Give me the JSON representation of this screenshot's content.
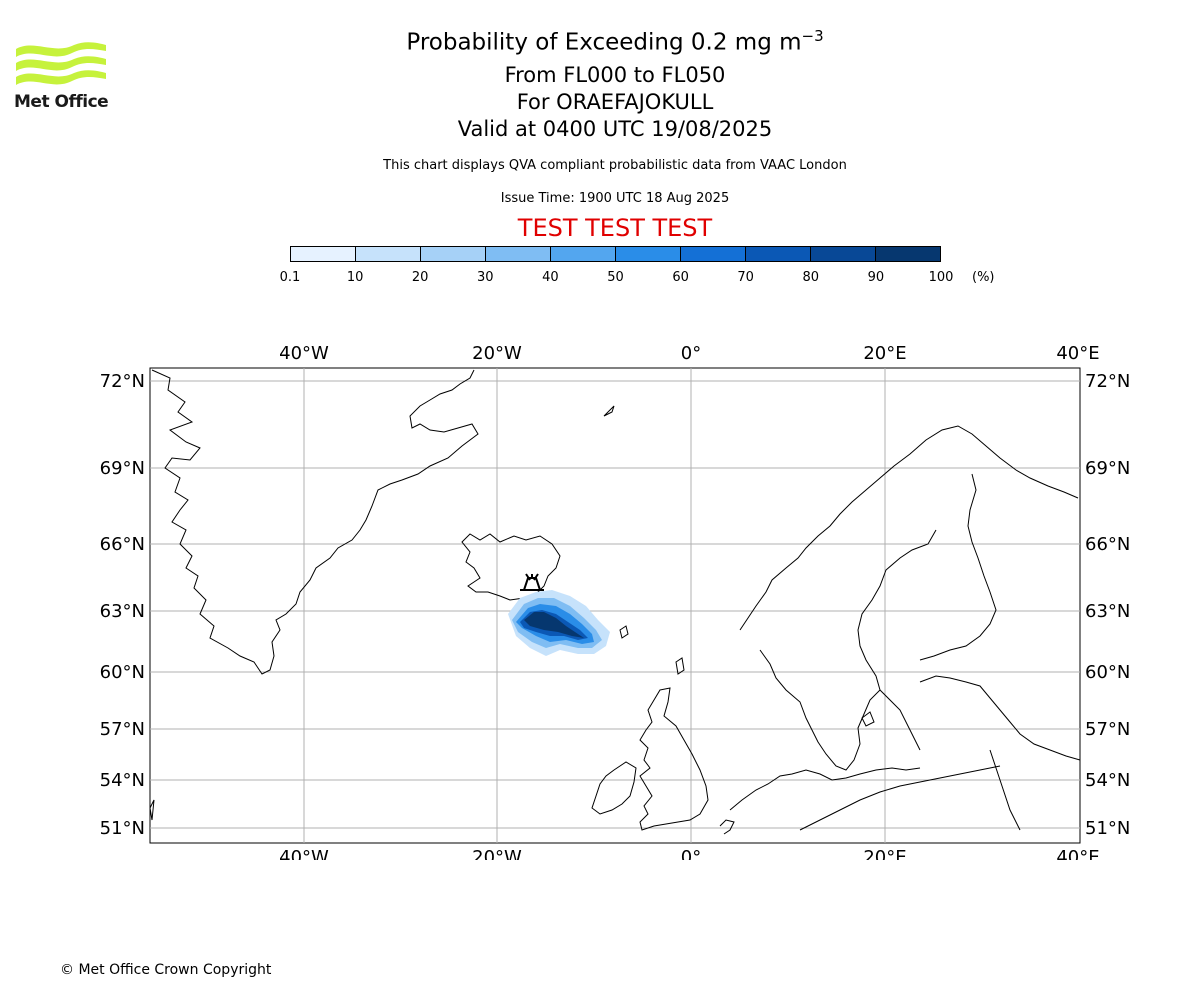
{
  "logo": {
    "name": "Met Office"
  },
  "titles": {
    "main": "Probability of Exceeding 0.2 mg m",
    "main_exponent": "−3",
    "levels": "From FL000 to FL050",
    "volcano": "For ORAEFAJOKULL",
    "valid": "Valid at 0400 UTC 19/08/2025",
    "description": "This chart displays QVA compliant probabilistic data from VAAC London",
    "issue": "Issue Time: 1900 UTC 18 Aug 2025",
    "test_banner": "TEST TEST TEST"
  },
  "colorbar": {
    "labels": [
      "0.1",
      "10",
      "20",
      "30",
      "40",
      "50",
      "60",
      "70",
      "80",
      "90",
      "100"
    ],
    "unit": "(%)",
    "colors": [
      "#e6f2ff",
      "#c6e2fb",
      "#a6d1f7",
      "#7fbdf3",
      "#53a6ef",
      "#2a8de8",
      "#1470d6",
      "#0b58b5",
      "#084896",
      "#06376f",
      "#042a56"
    ]
  },
  "map": {
    "lon_labels": [
      "40°W",
      "20°W",
      "0°",
      "20°E",
      "40°E"
    ],
    "lat_labels": [
      "72°N",
      "69°N",
      "66°N",
      "63°N",
      "60°N",
      "57°N",
      "54°N",
      "51°N"
    ],
    "volcano_marker": "volcano-icon"
  },
  "footer": {
    "copyright": "© Met Office Crown Copyright"
  }
}
